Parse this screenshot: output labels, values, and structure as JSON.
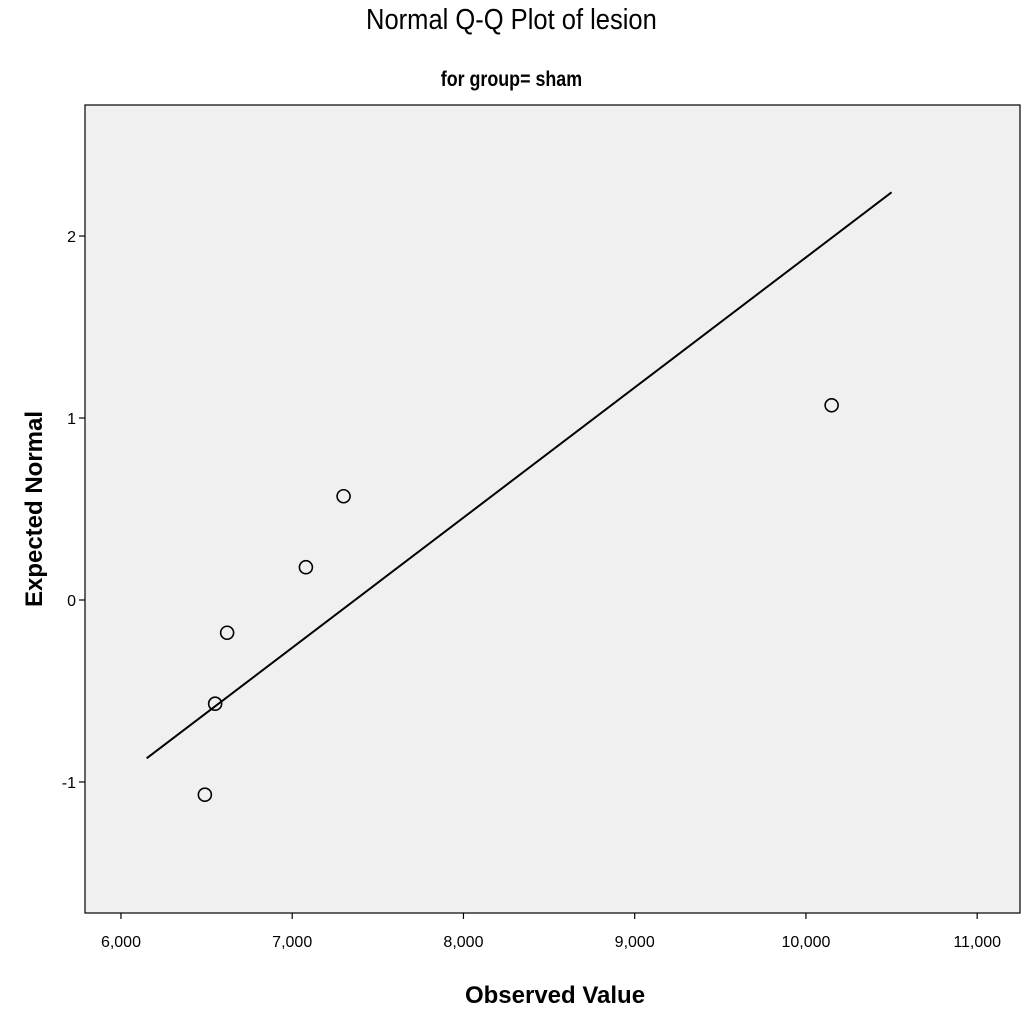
{
  "chart_data": {
    "type": "scatter",
    "title": "Normal Q-Q Plot of lesion",
    "subtitle": "for group= sham",
    "xlabel": "Observed Value",
    "ylabel": "Expected Normal",
    "xlim": [
      5790,
      11250
    ],
    "ylim": [
      -1.72,
      2.72
    ],
    "x_ticks": [
      6000,
      7000,
      8000,
      9000,
      10000,
      11000
    ],
    "x_tick_labels": [
      "6,000",
      "7,000",
      "8,000",
      "9,000",
      "10,000",
      "11,000"
    ],
    "y_ticks": [
      -1,
      0,
      1,
      2
    ],
    "y_tick_labels": [
      "-1",
      "0",
      "1",
      "2"
    ],
    "points": [
      {
        "x": 6490,
        "y": -1.07
      },
      {
        "x": 6550,
        "y": -0.57
      },
      {
        "x": 6620,
        "y": -0.18
      },
      {
        "x": 7080,
        "y": 0.18
      },
      {
        "x": 7300,
        "y": 0.57
      },
      {
        "x": 10150,
        "y": 1.07
      }
    ],
    "reference_line": {
      "x": [
        6150,
        10500
      ],
      "y": [
        -0.87,
        2.24
      ]
    },
    "colors": {
      "plot_background": "#f0f0f0",
      "marker": "#000000",
      "line": "#000000"
    },
    "grid": false,
    "legend": "none"
  }
}
